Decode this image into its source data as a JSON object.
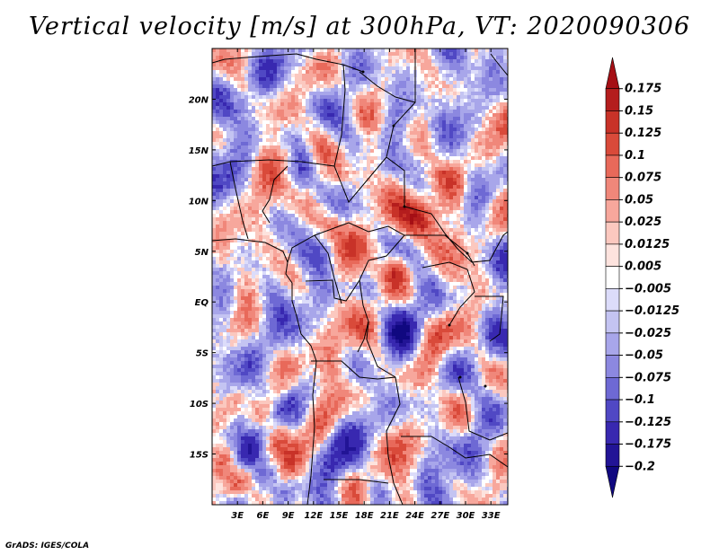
{
  "title": "Vertical velocity [m/s] at 300hPa, VT: 2020090306",
  "credit": "GrADS: IGES/COLA",
  "chart_data": {
    "type": "heatmap",
    "variable": "Vertical velocity",
    "units": "m/s",
    "level": "300hPa",
    "valid_time": "2020090306",
    "x_axis": {
      "range": [
        0,
        35
      ],
      "ticks": [
        3,
        6,
        9,
        12,
        15,
        18,
        21,
        24,
        27,
        30,
        33
      ],
      "tick_labels": [
        "3E",
        "6E",
        "9E",
        "12E",
        "15E",
        "18E",
        "21E",
        "24E",
        "27E",
        "30E",
        "33E"
      ]
    },
    "y_axis": {
      "range": [
        -20,
        25
      ],
      "ticks": [
        20,
        15,
        10,
        5,
        0,
        -5,
        -10,
        -15
      ],
      "tick_labels": [
        "20N",
        "15N",
        "10N",
        "5N",
        "EQ",
        "5S",
        "10S",
        "15S"
      ]
    },
    "colorbar": {
      "levels": [
        0.175,
        0.15,
        0.125,
        0.1,
        0.075,
        0.05,
        0.025,
        0.0125,
        0.005,
        -0.005,
        -0.0125,
        -0.025,
        -0.05,
        -0.075,
        -0.1,
        -0.125,
        -0.175,
        -0.2
      ],
      "labels": [
        "0.175",
        "0.15",
        "0.125",
        "0.1",
        "0.075",
        "0.05",
        "0.025",
        "0.0125",
        "0.005",
        "−0.005",
        "−0.0125",
        "−0.025",
        "−0.05",
        "−0.075",
        "−0.1",
        "−0.125",
        "−0.175",
        "−0.2"
      ],
      "colors": [
        "#a50f15",
        "#b41d1d",
        "#c83228",
        "#d94a3a",
        "#e8695a",
        "#f0877a",
        "#f7a79c",
        "#fbc8bf",
        "#fde3de",
        "#ffffff",
        "#dcdcfa",
        "#c4c4f2",
        "#a8a6ea",
        "#8c88e0",
        "#6e69d4",
        "#5048c4",
        "#3828b0",
        "#221496",
        "#100880"
      ]
    }
  }
}
